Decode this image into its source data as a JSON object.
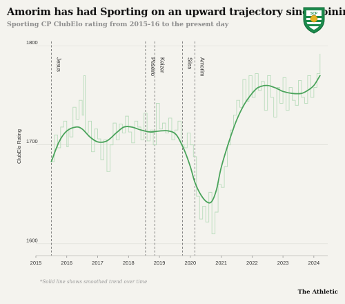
{
  "header": {
    "title": "Amorim has had Sporting on an upward trajectory since joining",
    "subtitle": "Sporting CP ClubElo rating from 2015-16 to the present day"
  },
  "logo": {
    "text": "SCP",
    "icon": "lion-crest-icon"
  },
  "footnote": "*Solid line shows smoothed trend over time",
  "brand": "The Athletic",
  "colors": {
    "background": "#f4f3ee",
    "trend": "#4aa35b",
    "raw": "#b9dcbc",
    "manager_line": "#666666"
  },
  "chart_data": {
    "type": "line",
    "ylabel": "ClubElo Rating",
    "xlabel": "",
    "xlim": [
      2015.0,
      2024.45
    ],
    "ylim": [
      1588,
      1808
    ],
    "x_ticks": [
      "2015",
      "2016",
      "2017",
      "2018",
      "2019",
      "2020",
      "2021",
      "2022",
      "2023",
      "2024"
    ],
    "y_ticks": [
      "1600",
      "1700",
      "1800"
    ],
    "managers": [
      {
        "name": "Jesus",
        "x": 2015.5
      },
      {
        "name": "Peseiro",
        "x": 2018.55
      },
      {
        "name": "Keizer",
        "x": 2018.85
      },
      {
        "name": "Silas",
        "x": 2019.75
      },
      {
        "name": "Amorim",
        "x": 2020.15
      }
    ],
    "series": [
      {
        "style": "smoothed",
        "x": [
          2015.5,
          2015.75,
          2016.0,
          2016.3,
          2016.5,
          2016.75,
          2017.0,
          2017.3,
          2017.6,
          2017.85,
          2018.1,
          2018.4,
          2018.7,
          2019.0,
          2019.3,
          2019.55,
          2019.8,
          2020.0,
          2020.15,
          2020.35,
          2020.55,
          2020.7,
          2020.85,
          2021.0,
          2021.25,
          2021.5,
          2021.75,
          2022.0,
          2022.2,
          2022.5,
          2022.8,
          2023.0,
          2023.3,
          2023.6,
          2023.8,
          2024.0,
          2024.2
        ],
        "values": [
          1683,
          1703,
          1714,
          1718,
          1716,
          1708,
          1703,
          1704,
          1712,
          1718,
          1718,
          1715,
          1713,
          1714,
          1714,
          1710,
          1695,
          1678,
          1662,
          1649,
          1642,
          1643,
          1655,
          1677,
          1703,
          1725,
          1741,
          1752,
          1758,
          1760,
          1757,
          1754,
          1752,
          1752,
          1755,
          1760,
          1770
        ]
      },
      {
        "style": "raw",
        "x": [
          2015.5,
          2015.6,
          2015.7,
          2015.8,
          2015.9,
          2016.0,
          2016.05,
          2016.1,
          2016.2,
          2016.3,
          2016.4,
          2016.5,
          2016.55,
          2016.6,
          2016.7,
          2016.8,
          2016.9,
          2017.0,
          2017.1,
          2017.2,
          2017.3,
          2017.4,
          2017.5,
          2017.6,
          2017.7,
          2017.8,
          2017.9,
          2018.0,
          2018.1,
          2018.2,
          2018.3,
          2018.4,
          2018.5,
          2018.6,
          2018.7,
          2018.8,
          2018.9,
          2019.0,
          2019.1,
          2019.2,
          2019.3,
          2019.4,
          2019.5,
          2019.6,
          2019.7,
          2019.8,
          2019.9,
          2020.0,
          2020.1,
          2020.2,
          2020.3,
          2020.4,
          2020.5,
          2020.6,
          2020.7,
          2020.8,
          2020.9,
          2021.0,
          2021.1,
          2021.2,
          2021.3,
          2021.4,
          2021.5,
          2021.6,
          2021.7,
          2021.8,
          2021.9,
          2022.0,
          2022.1,
          2022.2,
          2022.3,
          2022.4,
          2022.5,
          2022.6,
          2022.7,
          2022.8,
          2022.9,
          2023.0,
          2023.1,
          2023.2,
          2023.3,
          2023.4,
          2023.5,
          2023.6,
          2023.7,
          2023.8,
          2023.9,
          2024.0,
          2024.1,
          2024.2
        ],
        "values": [
          1683,
          1710,
          1697,
          1718,
          1724,
          1698,
          1716,
          1708,
          1738,
          1726,
          1745,
          1730,
          1770,
          1712,
          1724,
          1693,
          1716,
          1706,
          1685,
          1705,
          1673,
          1700,
          1722,
          1705,
          1721,
          1712,
          1729,
          1713,
          1702,
          1724,
          1718,
          1705,
          1732,
          1704,
          1715,
          1700,
          1742,
          1716,
          1722,
          1712,
          1727,
          1705,
          1715,
          1724,
          1700,
          1697,
          1712,
          1700,
          1688,
          1648,
          1625,
          1638,
          1622,
          1652,
          1610,
          1632,
          1660,
          1657,
          1678,
          1700,
          1715,
          1730,
          1745,
          1738,
          1766,
          1744,
          1770,
          1748,
          1772,
          1755,
          1764,
          1735,
          1770,
          1748,
          1728,
          1758,
          1742,
          1768,
          1735,
          1758,
          1745,
          1740,
          1765,
          1748,
          1742,
          1770,
          1748,
          1758,
          1772,
          1792
        ]
      }
    ]
  }
}
